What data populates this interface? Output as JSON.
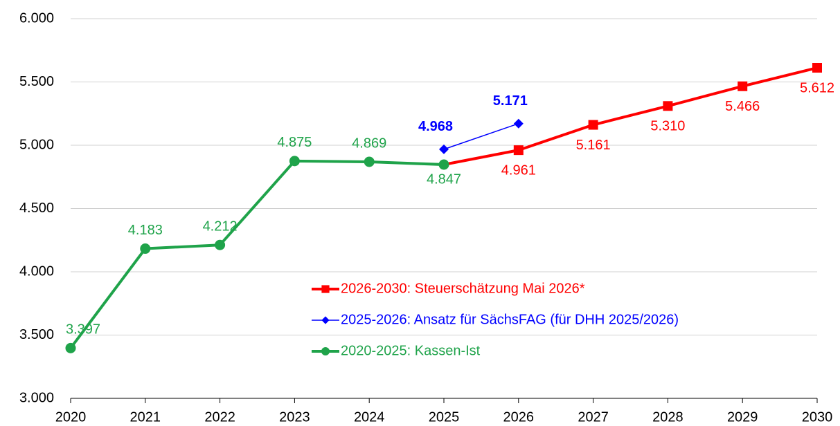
{
  "chart_data": {
    "type": "line",
    "x": [
      2020,
      2021,
      2022,
      2023,
      2024,
      2025,
      2026,
      2027,
      2028,
      2029,
      2030
    ],
    "xlim": [
      2020,
      2030
    ],
    "xticks": [
      2020,
      2021,
      2022,
      2023,
      2024,
      2025,
      2026,
      2027,
      2028,
      2029,
      2030
    ],
    "ylim": [
      3000,
      6000
    ],
    "yticks": [
      {
        "value": 3000,
        "label": "3.000"
      },
      {
        "value": 3500,
        "label": "3.500"
      },
      {
        "value": 4000,
        "label": "4.000"
      },
      {
        "value": 4500,
        "label": "4.500"
      },
      {
        "value": 5000,
        "label": "5.000"
      },
      {
        "value": 5500,
        "label": "5.500"
      },
      {
        "value": 6000,
        "label": "6.000"
      }
    ],
    "grid": true,
    "legend": "center",
    "series": [
      {
        "name": "2026-2030: Steuerschätzung Mai 2026*",
        "color": "#ff0000",
        "marker": "square",
        "values": [
          null,
          null,
          null,
          null,
          null,
          4847,
          4961,
          5161,
          5310,
          5466,
          5612
        ],
        "value_labels": [
          null,
          null,
          null,
          null,
          null,
          null,
          "4.961",
          "5.161",
          "5.310",
          "5.466",
          "5.612"
        ]
      },
      {
        "name": "2025-2026: Ansatz für SächsFAG (für DHH 2025/2026)",
        "color": "#0000ff",
        "marker": "diamond",
        "values": [
          null,
          null,
          null,
          null,
          null,
          4968,
          5171,
          null,
          null,
          null,
          null
        ],
        "value_labels": [
          null,
          null,
          null,
          null,
          null,
          "4.968",
          "5.171",
          null,
          null,
          null,
          null
        ]
      },
      {
        "name": "2020-2025: Kassen-Ist",
        "color": "#1fa34a",
        "marker": "circle",
        "values": [
          3397,
          4183,
          4212,
          4875,
          4869,
          4847,
          null,
          null,
          null,
          null,
          null
        ],
        "value_labels": [
          "3.397",
          "4.183",
          "4.212",
          "4.875",
          "4.869",
          "4.847",
          null,
          null,
          null,
          null,
          null
        ]
      }
    ]
  }
}
